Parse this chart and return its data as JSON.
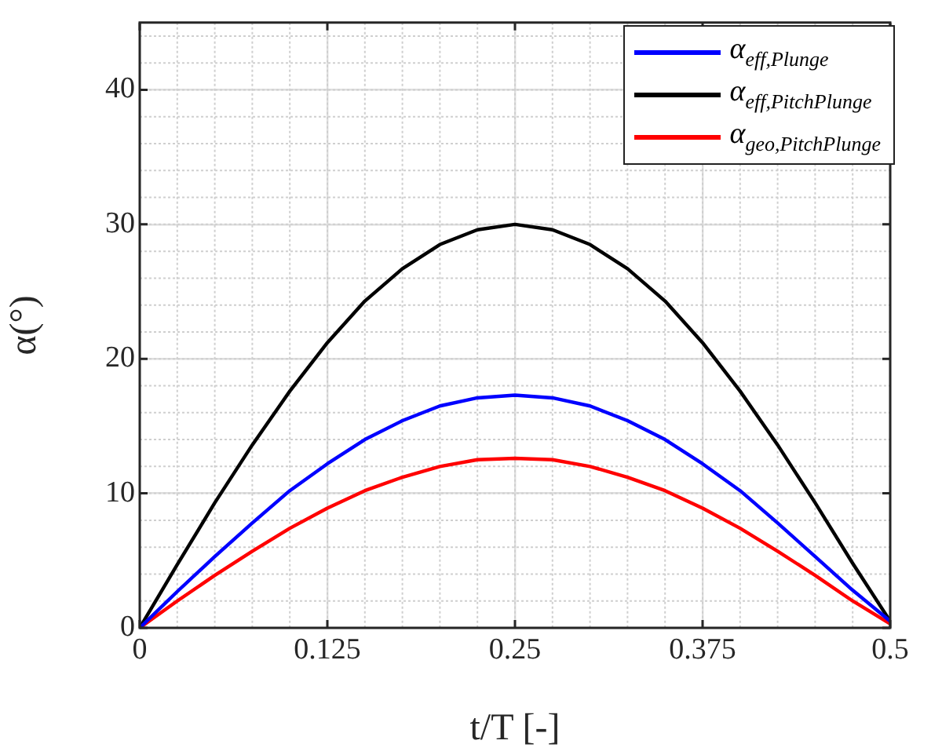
{
  "chart_data": {
    "type": "line",
    "xlabel": "t/T [-]",
    "ylabel": "α(°)",
    "x": [
      0,
      0.025,
      0.05,
      0.075,
      0.1,
      0.125,
      0.15,
      0.175,
      0.2,
      0.225,
      0.25,
      0.275,
      0.3,
      0.325,
      0.35,
      0.375,
      0.4,
      0.425,
      0.45,
      0.475,
      0.5
    ],
    "series": [
      {
        "name": "α$_{eff,Plunge}$",
        "color": "#0000ff",
        "values": [
          0,
          2.7,
          5.3,
          7.8,
          10.2,
          12.2,
          14.0,
          15.4,
          16.5,
          17.1,
          17.3,
          17.1,
          16.5,
          15.4,
          14.0,
          12.2,
          10.2,
          7.8,
          5.3,
          2.8,
          0.5
        ]
      },
      {
        "name": "α$_{eff,PitchPlunge}$",
        "color": "#000000",
        "values": [
          0,
          4.7,
          9.3,
          13.6,
          17.6,
          21.2,
          24.3,
          26.7,
          28.5,
          29.6,
          30,
          29.6,
          28.5,
          26.7,
          24.3,
          21.2,
          17.6,
          13.6,
          9.3,
          4.8,
          0.5
        ]
      },
      {
        "name": "α$_{geo,PitchPlunge}$",
        "color": "#ff0000",
        "values": [
          0,
          2.0,
          3.9,
          5.7,
          7.4,
          8.9,
          10.2,
          11.2,
          12.0,
          12.5,
          12.6,
          12.5,
          12.0,
          11.2,
          10.2,
          8.9,
          7.4,
          5.7,
          3.9,
          2.0,
          0.3
        ]
      }
    ],
    "xlim": [
      0,
      0.5
    ],
    "xticks": [
      0,
      0.125,
      0.25,
      0.375,
      0.5
    ],
    "ylim": [
      0,
      45
    ],
    "yticks": [
      0,
      10,
      20,
      30,
      40
    ],
    "grid": true,
    "legend": "top right",
    "marker": "none",
    "line_style": "solid"
  }
}
